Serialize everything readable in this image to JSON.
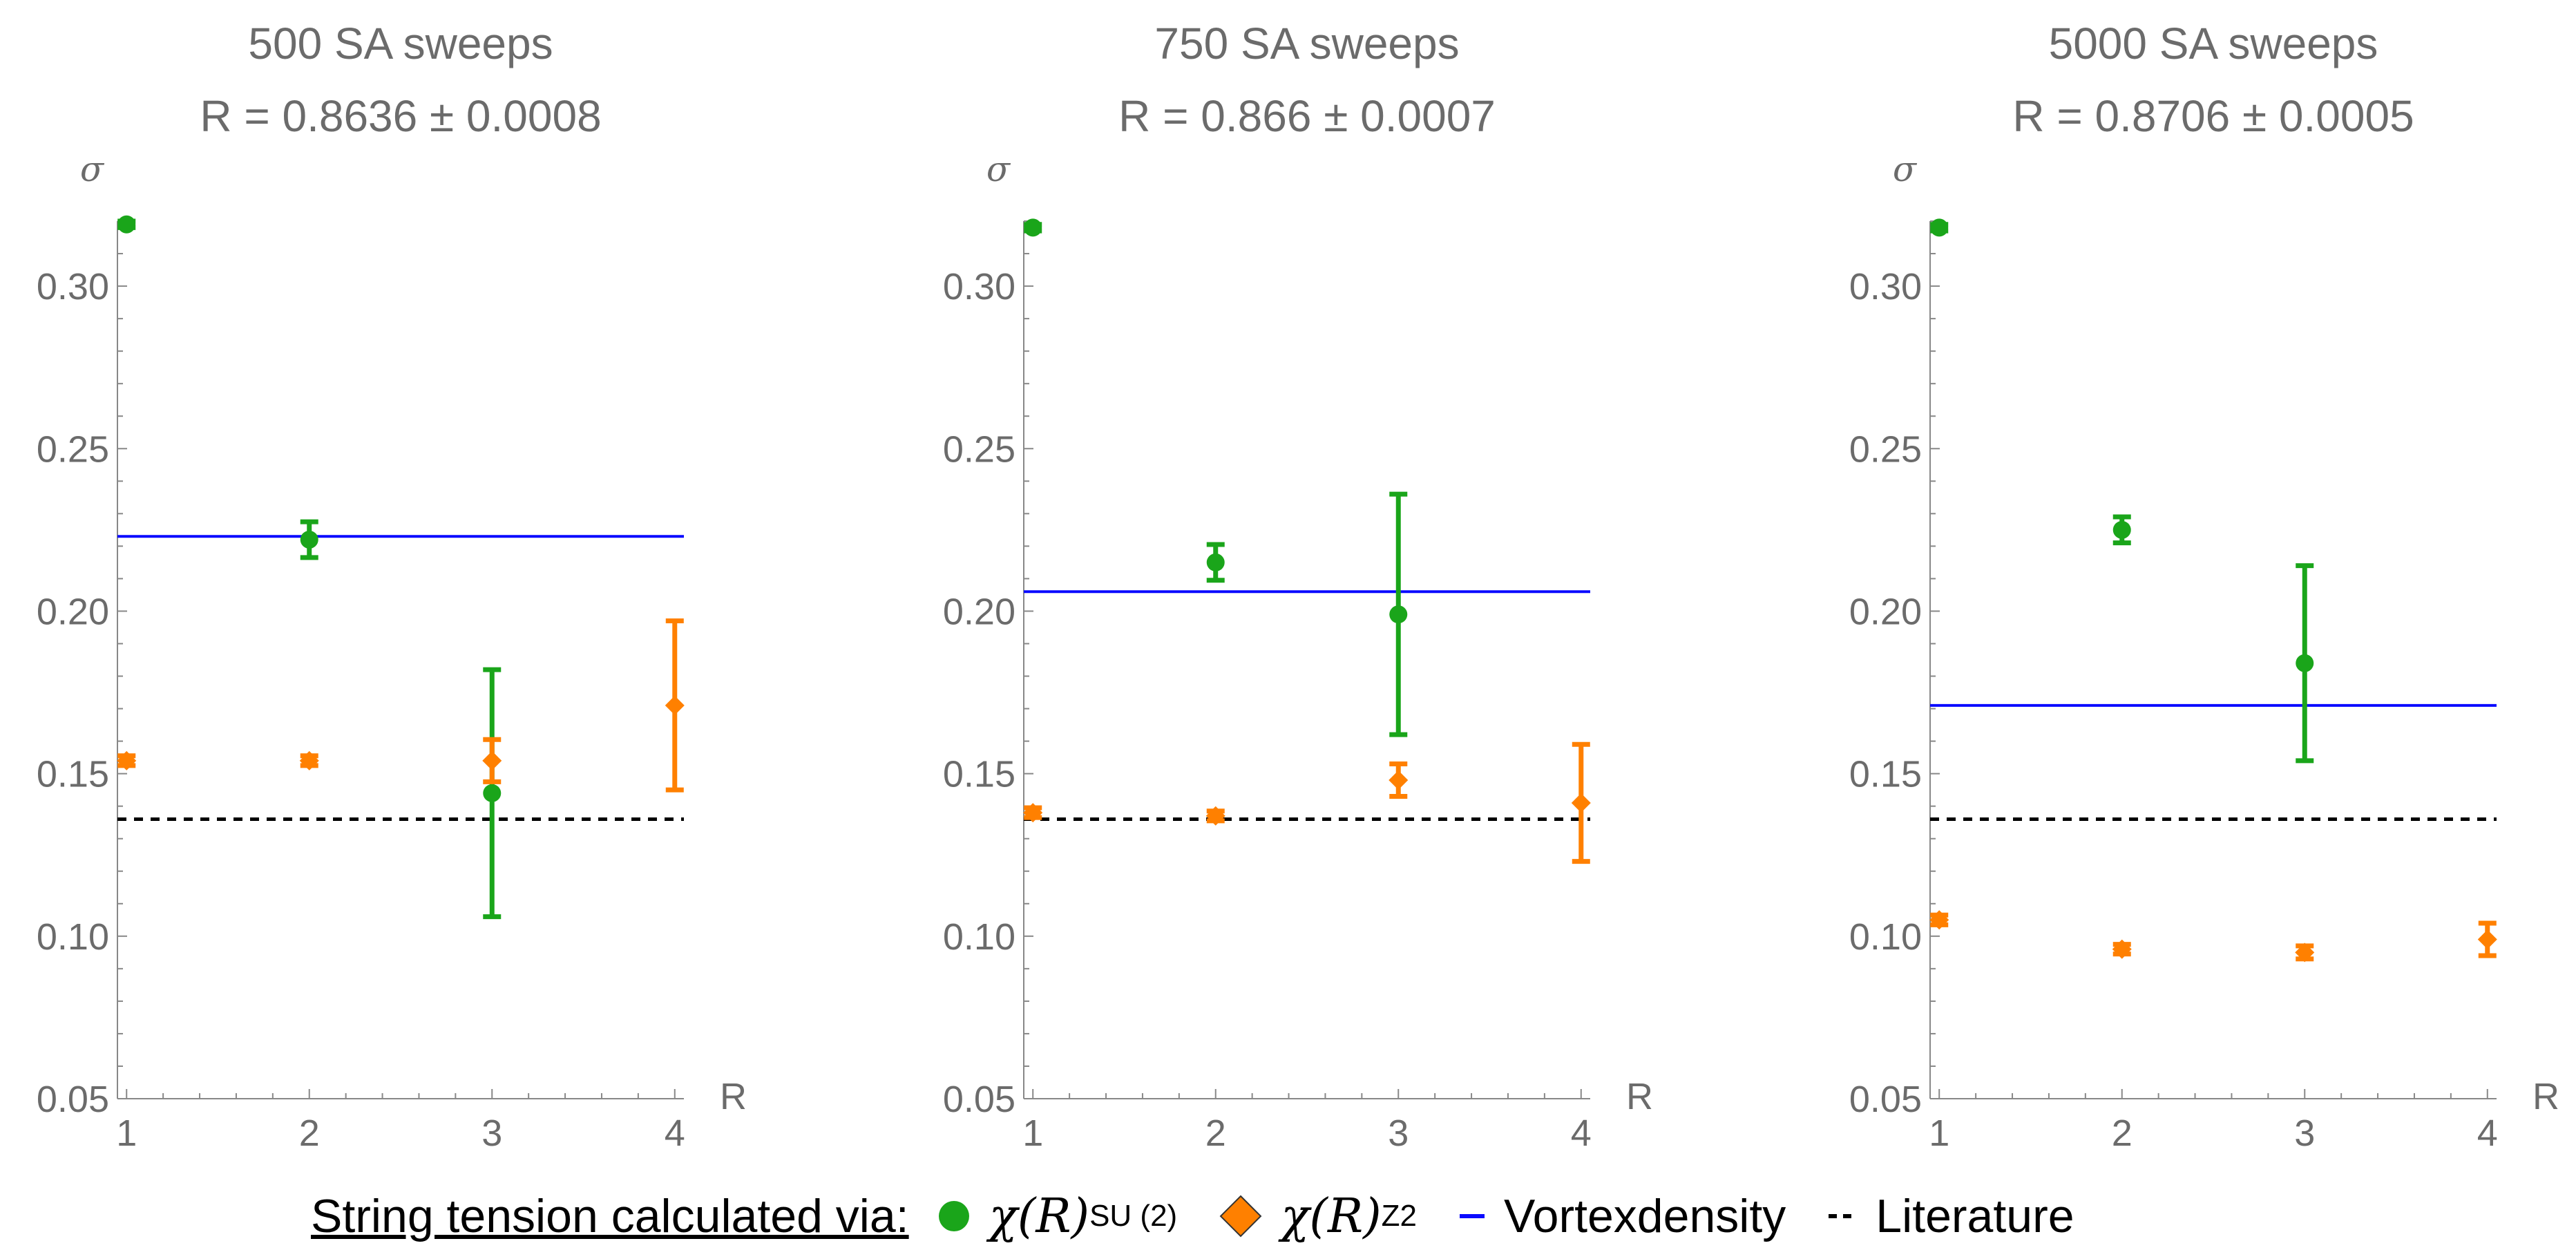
{
  "chart_data": [
    {
      "type": "scatter",
      "title": "500 SA sweeps",
      "subtitle": "R = 0.8636 ± 0.0008",
      "xlabel": "R",
      "ylabel": "σ",
      "xlim": [
        0.95,
        4.05
      ],
      "ylim": [
        0.05,
        0.32
      ],
      "xticks": [
        "1",
        "2",
        "3",
        "4"
      ],
      "yticks": [
        "0.05",
        "0.10",
        "0.15",
        "0.20",
        "0.25",
        "0.30"
      ],
      "series": [
        {
          "name": "chi_SU2",
          "color": "#1aa51a",
          "marker": "circle",
          "points": [
            {
              "x": 1,
              "y": 0.319,
              "err": 0.001
            },
            {
              "x": 2,
              "y": 0.222,
              "err": 0.0055
            },
            {
              "x": 3,
              "y": 0.144,
              "err": 0.038
            }
          ]
        },
        {
          "name": "chi_Z2",
          "color": "#ff8000",
          "marker": "diamond",
          "points": [
            {
              "x": 1,
              "y": 0.154,
              "err": 0.0015
            },
            {
              "x": 2,
              "y": 0.154,
              "err": 0.0015
            },
            {
              "x": 3,
              "y": 0.154,
              "err": 0.0065
            },
            {
              "x": 4,
              "y": 0.171,
              "err": 0.026
            }
          ]
        },
        {
          "name": "vortexdensity",
          "type": "hline",
          "color": "#0a0aff",
          "y": 0.223
        },
        {
          "name": "literature",
          "type": "hline",
          "color": "#000000",
          "dashed": true,
          "y": 0.136
        }
      ]
    },
    {
      "type": "scatter",
      "title": "750 SA sweeps",
      "subtitle": "R = 0.866 ± 0.0007",
      "xlabel": "R",
      "ylabel": "σ",
      "xlim": [
        0.95,
        4.05
      ],
      "ylim": [
        0.05,
        0.32
      ],
      "xticks": [
        "1",
        "2",
        "3",
        "4"
      ],
      "yticks": [
        "0.05",
        "0.10",
        "0.15",
        "0.20",
        "0.25",
        "0.30"
      ],
      "series": [
        {
          "name": "chi_SU2",
          "color": "#1aa51a",
          "marker": "circle",
          "points": [
            {
              "x": 1,
              "y": 0.318,
              "err": 0.001
            },
            {
              "x": 2,
              "y": 0.215,
              "err": 0.0055
            },
            {
              "x": 3,
              "y": 0.199,
              "err": 0.037
            }
          ]
        },
        {
          "name": "chi_Z2",
          "color": "#ff8000",
          "marker": "diamond",
          "points": [
            {
              "x": 1,
              "y": 0.138,
              "err": 0.0015
            },
            {
              "x": 2,
              "y": 0.137,
              "err": 0.0015
            },
            {
              "x": 3,
              "y": 0.148,
              "err": 0.005
            },
            {
              "x": 4,
              "y": 0.141,
              "err": 0.018
            }
          ]
        },
        {
          "name": "vortexdensity",
          "type": "hline",
          "color": "#0a0aff",
          "y": 0.206
        },
        {
          "name": "literature",
          "type": "hline",
          "color": "#000000",
          "dashed": true,
          "y": 0.136
        }
      ]
    },
    {
      "type": "scatter",
      "title": "5000 SA sweeps",
      "subtitle": "R = 0.8706 ± 0.0005",
      "xlabel": "R",
      "ylabel": "σ",
      "xlim": [
        0.95,
        4.05
      ],
      "ylim": [
        0.05,
        0.32
      ],
      "xticks": [
        "1",
        "2",
        "3",
        "4"
      ],
      "yticks": [
        "0.05",
        "0.10",
        "0.15",
        "0.20",
        "0.25",
        "0.30"
      ],
      "series": [
        {
          "name": "chi_SU2",
          "color": "#1aa51a",
          "marker": "circle",
          "points": [
            {
              "x": 1,
              "y": 0.318,
              "err": 0.001
            },
            {
              "x": 2,
              "y": 0.225,
              "err": 0.004
            },
            {
              "x": 3,
              "y": 0.184,
              "err": 0.03
            }
          ]
        },
        {
          "name": "chi_Z2",
          "color": "#ff8000",
          "marker": "diamond",
          "points": [
            {
              "x": 1,
              "y": 0.105,
              "err": 0.0015
            },
            {
              "x": 2,
              "y": 0.096,
              "err": 0.0015
            },
            {
              "x": 3,
              "y": 0.095,
              "err": 0.002
            },
            {
              "x": 4,
              "y": 0.099,
              "err": 0.005
            }
          ]
        },
        {
          "name": "vortexdensity",
          "type": "hline",
          "color": "#0a0aff",
          "y": 0.171
        },
        {
          "name": "literature",
          "type": "hline",
          "color": "#000000",
          "dashed": true,
          "y": 0.136
        }
      ]
    }
  ],
  "legend": {
    "intro": "String tension calculated via:",
    "su2_label": "χ(R)",
    "su2_sub": "SU (2)",
    "z2_label": "χ(R)",
    "z2_sub": "Z2",
    "vortex_label": "Vortexdensity",
    "literature_label": "Literature",
    "colors": {
      "su2": "#1aa51a",
      "z2": "#ff8000",
      "vortex": "#0a0aff",
      "literature": "#000000"
    }
  }
}
